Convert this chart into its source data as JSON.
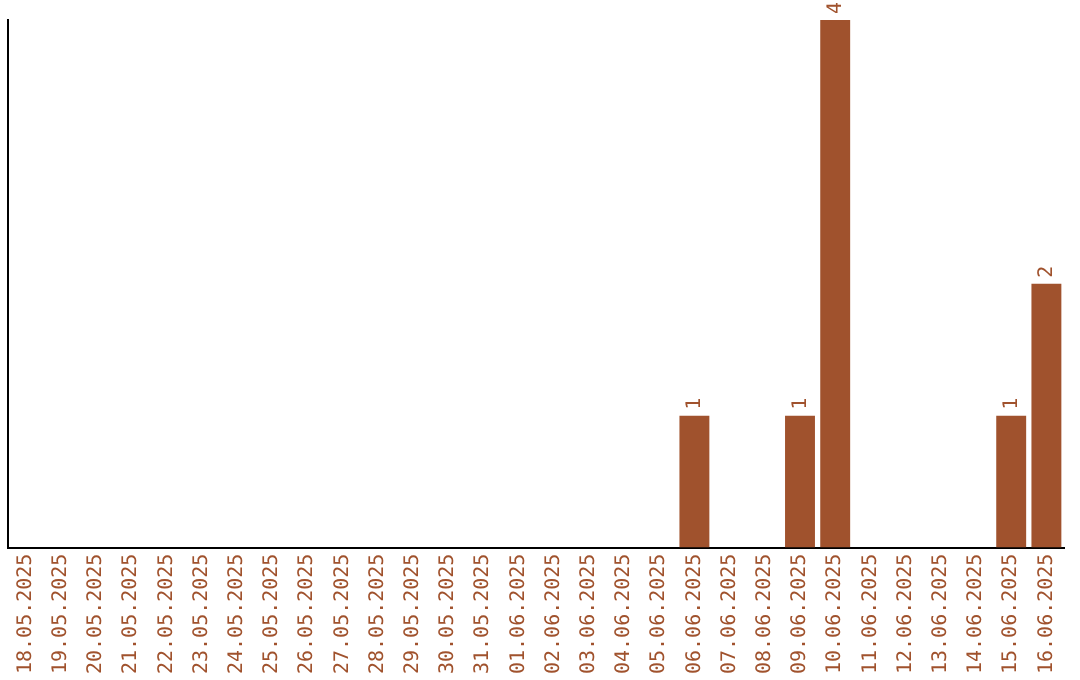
{
  "chart_data": {
    "type": "bar",
    "categories": [
      "18.05.2025",
      "19.05.2025",
      "20.05.2025",
      "21.05.2025",
      "22.05.2025",
      "23.05.2025",
      "24.05.2025",
      "25.05.2025",
      "26.05.2025",
      "27.05.2025",
      "28.05.2025",
      "29.05.2025",
      "30.05.2025",
      "31.05.2025",
      "01.06.2025",
      "02.06.2025",
      "03.06.2025",
      "04.06.2025",
      "05.06.2025",
      "06.06.2025",
      "07.06.2025",
      "08.06.2025",
      "09.06.2025",
      "10.06.2025",
      "11.06.2025",
      "12.06.2025",
      "13.06.2025",
      "14.06.2025",
      "15.06.2025",
      "16.06.2025"
    ],
    "values": [
      null,
      null,
      null,
      null,
      null,
      null,
      null,
      null,
      null,
      null,
      null,
      null,
      null,
      null,
      null,
      null,
      null,
      null,
      null,
      1,
      null,
      null,
      1,
      4,
      null,
      null,
      null,
      null,
      1,
      2
    ],
    "data_labels": true,
    "color": "#a0522d",
    "grid": false,
    "legend": false,
    "tick_labels": "x"
  }
}
